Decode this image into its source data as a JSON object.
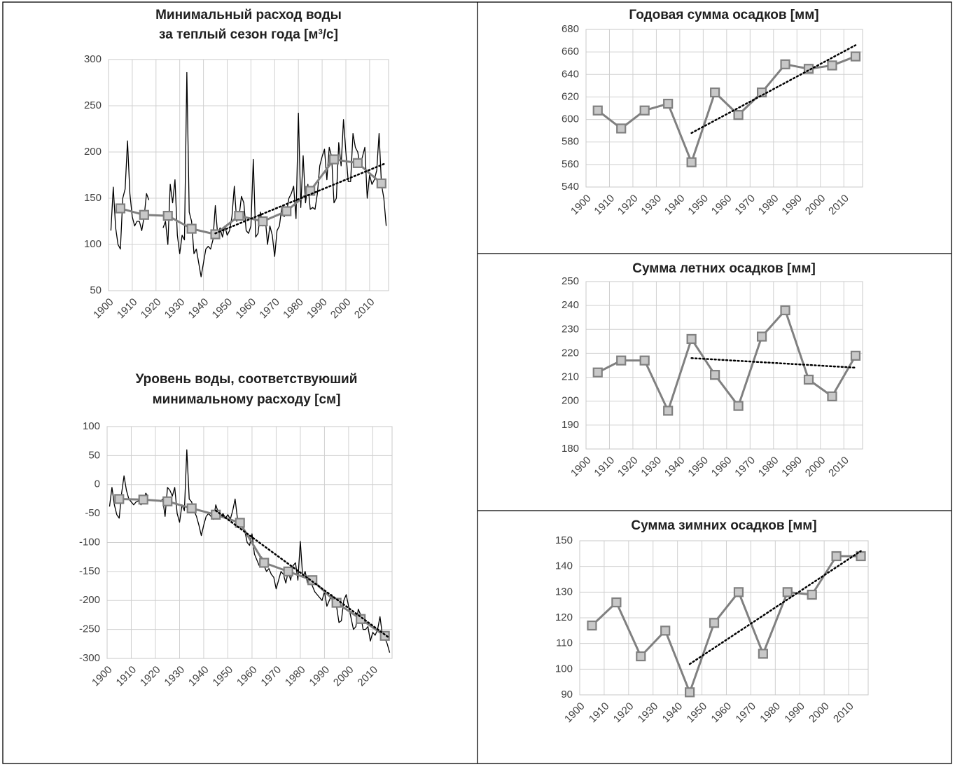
{
  "chart_data": [
    {
      "type": "line",
      "title": [
        "Минимальный расход воды",
        "за теплый сезон года [м³/с]"
      ],
      "xlim": [
        1900,
        2018
      ],
      "xticks": [
        1900,
        1910,
        1920,
        1930,
        1940,
        1950,
        1960,
        1970,
        1980,
        1990,
        2000,
        2010
      ],
      "ylim": [
        50,
        300
      ],
      "yticks": [
        50,
        100,
        150,
        200,
        250,
        300
      ],
      "grid": true,
      "series": [
        {
          "color": "#000000",
          "x": [
            1901,
            1902,
            1903,
            1904,
            1905,
            1906,
            1907,
            1908,
            1909,
            1910,
            1911,
            1912,
            1913,
            1914,
            1915,
            1916,
            1917,
            1918,
            1919,
            1920,
            1921,
            1922,
            1923,
            1924,
            1925,
            1926,
            1927,
            1928,
            1929,
            1930,
            1931,
            1932,
            1933,
            1934,
            1935,
            1936,
            1937,
            1938,
            1939,
            1940,
            1941,
            1942,
            1943,
            1944,
            1945,
            1946,
            1947,
            1948,
            1949,
            1950,
            1951,
            1952,
            1953,
            1954,
            1955,
            1956,
            1957,
            1958,
            1959,
            1960,
            1961,
            1962,
            1963,
            1964,
            1965,
            1966,
            1967,
            1968,
            1969,
            1970,
            1971,
            1972,
            1973,
            1974,
            1975,
            1976,
            1977,
            1978,
            1979,
            1980,
            1981,
            1982,
            1983,
            1984,
            1985,
            1986,
            1987,
            1988,
            1989,
            1990,
            1991,
            1992,
            1993,
            1994,
            1995,
            1996,
            1997,
            1998,
            1999,
            2000,
            2001,
            2002,
            2003,
            2004,
            2005,
            2006,
            2007,
            2008,
            2009,
            2010,
            2011,
            2012,
            2013,
            2014,
            2015,
            2016,
            2017
          ],
          "values": [
            115,
            162,
            118,
            100,
            95,
            150,
            160,
            212,
            155,
            130,
            120,
            125,
            125,
            115,
            130,
            155,
            148,
            null,
            null,
            null,
            null,
            null,
            118,
            125,
            100,
            165,
            145,
            170,
            110,
            90,
            110,
            105,
            286,
            135,
            125,
            90,
            95,
            80,
            65,
            80,
            95,
            98,
            95,
            105,
            142,
            110,
            118,
            108,
            120,
            110,
            115,
            130,
            163,
            125,
            130,
            152,
            145,
            115,
            112,
            120,
            192,
            108,
            112,
            135,
            120,
            130,
            100,
            120,
            110,
            87,
            115,
            120,
            140,
            130,
            135,
            150,
            155,
            163,
            128,
            242,
            140,
            196,
            145,
            165,
            138,
            140,
            138,
            155,
            185,
            195,
            203,
            170,
            205,
            195,
            145,
            150,
            210,
            185,
            235,
            200,
            168,
            168,
            220,
            205,
            200,
            185,
            195,
            205,
            150,
            175,
            165,
            170,
            180,
            220,
            165,
            150,
            120
          ]
        },
        {
          "color": "#808080",
          "marker": "square",
          "x": [
            1905,
            1915,
            1925,
            1935,
            1945,
            1955,
            1965,
            1975,
            1985,
            1995,
            2005,
            2015
          ],
          "values": [
            139,
            132,
            131,
            117,
            111,
            131,
            125,
            136,
            158,
            192,
            188,
            166
          ]
        },
        {
          "color": "#000000",
          "style": "dotted",
          "x": [
            1945,
            2016
          ],
          "values": [
            112,
            187
          ]
        }
      ]
    },
    {
      "type": "line",
      "title": [
        "Уровень воды, соответствуюший",
        "минимальному расходу [см]"
      ],
      "xlim": [
        1900,
        2018
      ],
      "xticks": [
        1900,
        1910,
        1920,
        1930,
        1940,
        1950,
        1960,
        1970,
        1980,
        1990,
        2000,
        2010
      ],
      "ylim": [
        -300,
        100
      ],
      "yticks": [
        -300,
        -250,
        -200,
        -150,
        -100,
        -50,
        0,
        50,
        100
      ],
      "grid": true,
      "series": [
        {
          "color": "#000000",
          "x": [
            1901,
            1902,
            1903,
            1904,
            1905,
            1906,
            1907,
            1908,
            1909,
            1910,
            1911,
            1912,
            1913,
            1914,
            1915,
            1916,
            1917,
            1918,
            1919,
            1920,
            1921,
            1922,
            1923,
            1924,
            1925,
            1926,
            1927,
            1928,
            1929,
            1930,
            1931,
            1932,
            1933,
            1934,
            1935,
            1936,
            1937,
            1938,
            1939,
            1940,
            1941,
            1942,
            1943,
            1944,
            1945,
            1946,
            1947,
            1948,
            1949,
            1950,
            1951,
            1952,
            1953,
            1954,
            1955,
            1956,
            1957,
            1958,
            1959,
            1960,
            1961,
            1962,
            1963,
            1964,
            1965,
            1966,
            1967,
            1968,
            1969,
            1970,
            1971,
            1972,
            1973,
            1974,
            1975,
            1976,
            1977,
            1978,
            1979,
            1980,
            1981,
            1982,
            1983,
            1984,
            1985,
            1986,
            1987,
            1988,
            1989,
            1990,
            1991,
            1992,
            1993,
            1994,
            1995,
            1996,
            1997,
            1998,
            1999,
            2000,
            2001,
            2002,
            2003,
            2004,
            2005,
            2006,
            2007,
            2008,
            2009,
            2010,
            2011,
            2012,
            2013,
            2014,
            2015,
            2016,
            2017
          ],
          "values": [
            -38,
            -5,
            -35,
            -52,
            -58,
            -15,
            15,
            -10,
            -25,
            -30,
            -35,
            -30,
            -28,
            -35,
            -30,
            -15,
            -20,
            null,
            null,
            null,
            null,
            -30,
            -25,
            -55,
            -5,
            -10,
            -20,
            -5,
            -50,
            -65,
            -35,
            -45,
            60,
            -25,
            -30,
            -45,
            -55,
            -70,
            -88,
            -70,
            -55,
            -50,
            -55,
            -60,
            -35,
            -48,
            -55,
            -50,
            -58,
            -52,
            -60,
            -45,
            -25,
            -60,
            -65,
            -70,
            -80,
            -100,
            -105,
            -85,
            -120,
            -130,
            -140,
            -125,
            -140,
            -150,
            -145,
            -155,
            -160,
            -180,
            -165,
            -150,
            -155,
            -170,
            -150,
            -165,
            -140,
            -135,
            -165,
            -98,
            -160,
            -150,
            -170,
            -165,
            -175,
            -185,
            -190,
            -195,
            -200,
            -185,
            -210,
            -200,
            -190,
            -200,
            -210,
            -238,
            -235,
            -200,
            -190,
            -210,
            -230,
            -250,
            -245,
            -215,
            -225,
            -250,
            -250,
            -245,
            -270,
            -255,
            -260,
            -250,
            -228,
            -260,
            -265,
            -275,
            -290
          ]
        },
        {
          "color": "#808080",
          "marker": "square",
          "x": [
            1905,
            1915,
            1925,
            1935,
            1945,
            1955,
            1965,
            1975,
            1985,
            1995,
            2005,
            2015
          ],
          "values": [
            -25,
            -26,
            -29,
            -41,
            -52,
            -66,
            -135,
            -150,
            -165,
            -204,
            -232,
            -261
          ]
        },
        {
          "color": "#000000",
          "style": "dotted",
          "x": [
            1945,
            2017
          ],
          "values": [
            -45,
            -265
          ]
        }
      ]
    },
    {
      "type": "line",
      "title": "Годовая сумма осадков [мм]",
      "xlim": [
        1900,
        2018
      ],
      "xticks": [
        1900,
        1910,
        1920,
        1930,
        1940,
        1950,
        1960,
        1970,
        1980,
        1990,
        2000,
        2010
      ],
      "ylim": [
        540,
        680
      ],
      "yticks": [
        540,
        560,
        580,
        600,
        620,
        640,
        660,
        680
      ],
      "grid": true,
      "series": [
        {
          "color": "#808080",
          "marker": "square",
          "x": [
            1905,
            1915,
            1925,
            1935,
            1945,
            1955,
            1965,
            1975,
            1985,
            1995,
            2005,
            2015
          ],
          "values": [
            608,
            592,
            608,
            614,
            562,
            624,
            604,
            624,
            649,
            645,
            648,
            656
          ]
        },
        {
          "color": "#000000",
          "style": "dotted",
          "x": [
            1945,
            2015
          ],
          "values": [
            588,
            666
          ]
        }
      ]
    },
    {
      "type": "line",
      "title": "Сумма летних осадков [мм]",
      "xlim": [
        1900,
        2018
      ],
      "xticks": [
        1900,
        1910,
        1920,
        1930,
        1940,
        1950,
        1960,
        1970,
        1980,
        1990,
        2000,
        2010
      ],
      "ylim": [
        180,
        250
      ],
      "yticks": [
        180,
        190,
        200,
        210,
        220,
        230,
        240,
        250
      ],
      "grid": true,
      "series": [
        {
          "color": "#808080",
          "marker": "square",
          "x": [
            1905,
            1915,
            1925,
            1935,
            1945,
            1955,
            1965,
            1975,
            1985,
            1995,
            2005,
            2015
          ],
          "values": [
            212,
            217,
            217,
            196,
            226,
            211,
            198,
            227,
            238,
            209,
            202,
            219
          ]
        },
        {
          "color": "#000000",
          "style": "dotted",
          "x": [
            1945,
            2015
          ],
          "values": [
            218,
            214
          ]
        }
      ]
    },
    {
      "type": "line",
      "title": "Сумма зимних осадков [мм]",
      "xlim": [
        1900,
        2018
      ],
      "xticks": [
        1900,
        1910,
        1920,
        1930,
        1940,
        1950,
        1960,
        1970,
        1980,
        1990,
        2000,
        2010
      ],
      "ylim": [
        90,
        150
      ],
      "yticks": [
        90,
        100,
        110,
        120,
        130,
        140,
        150
      ],
      "grid": true,
      "series": [
        {
          "color": "#808080",
          "marker": "square",
          "x": [
            1905,
            1915,
            1925,
            1935,
            1945,
            1955,
            1965,
            1975,
            1985,
            1995,
            2005,
            2015
          ],
          "values": [
            117,
            126,
            105,
            115,
            91,
            118,
            130,
            106,
            130,
            129,
            144,
            144
          ]
        },
        {
          "color": "#000000",
          "style": "dotted",
          "x": [
            1945,
            2015
          ],
          "values": [
            102,
            146
          ]
        }
      ]
    }
  ]
}
